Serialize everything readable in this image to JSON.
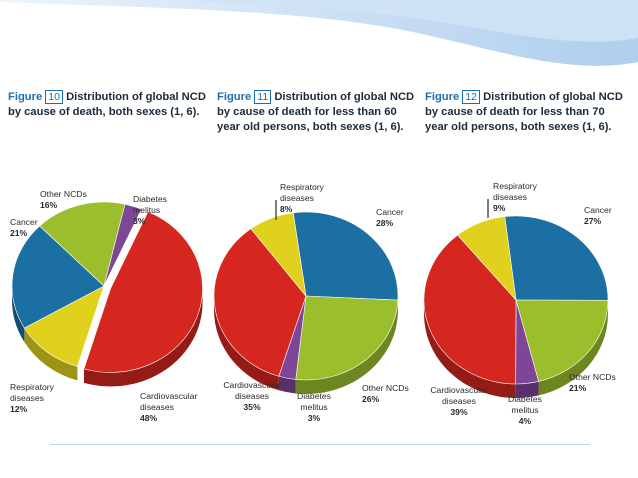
{
  "colors": {
    "cardiovascular": "#d5261f",
    "cancer": "#1b6fa3",
    "respiratory": "#e0d21c",
    "diabetes": "#7e4697",
    "other": "#9bbf2c",
    "figure_accent": "#1a6fb3"
  },
  "figures": [
    {
      "figure_word": "Figure",
      "number": "10",
      "caption": "Distribution of global NCD by cause of death, both sexes (1, 6).",
      "labels": [
        {
          "name": "Other NCDs",
          "pct": "16%"
        },
        {
          "name": "Diabetes melitus",
          "pct": "3%"
        },
        {
          "name": "Cancer",
          "pct": "21%"
        },
        {
          "name": "Respiratory diseases",
          "pct": "12%"
        },
        {
          "name": "Cardiovascular diseases",
          "pct": "48%"
        }
      ]
    },
    {
      "figure_word": "Figure",
      "number": "11",
      "caption": "Distribution of global NCD by cause of death for less than 60 year old persons, both sexes (1, 6).",
      "labels": [
        {
          "name": "Respiratory diseases",
          "pct": "8%"
        },
        {
          "name": "Cancer",
          "pct": "28%"
        },
        {
          "name": "Cardiovascular diseases",
          "pct": "35%"
        },
        {
          "name": "Diabetes melitus",
          "pct": "3%"
        },
        {
          "name": "Other NCDs",
          "pct": "26%"
        }
      ]
    },
    {
      "figure_word": "Figure",
      "number": "12",
      "caption": "Distribution of global NCD by cause of death for less than 70 year old persons, both sexes (1, 6).",
      "labels": [
        {
          "name": "Respiratory diseases",
          "pct": "9%"
        },
        {
          "name": "Cancer",
          "pct": "27%"
        },
        {
          "name": "Cardiovascular diseases",
          "pct": "39%"
        },
        {
          "name": "Diabetes melitus",
          "pct": "4%"
        },
        {
          "name": "Other NCDs",
          "pct": "21%"
        }
      ]
    }
  ],
  "chart_data": [
    {
      "type": "pie",
      "slices": [
        {
          "key": "cardiovascular",
          "value": 48
        },
        {
          "key": "respiratory",
          "value": 12
        },
        {
          "key": "cancer",
          "value": 21
        },
        {
          "key": "other",
          "value": 16
        },
        {
          "key": "diabetes",
          "value": 3
        }
      ]
    },
    {
      "type": "pie",
      "slices": [
        {
          "key": "cancer",
          "value": 28
        },
        {
          "key": "other",
          "value": 26
        },
        {
          "key": "diabetes",
          "value": 3
        },
        {
          "key": "cardiovascular",
          "value": 35
        },
        {
          "key": "respiratory",
          "value": 8
        }
      ]
    },
    {
      "type": "pie",
      "slices": [
        {
          "key": "cancer",
          "value": 27
        },
        {
          "key": "other",
          "value": 21
        },
        {
          "key": "diabetes",
          "value": 4
        },
        {
          "key": "cardiovascular",
          "value": 39
        },
        {
          "key": "respiratory",
          "value": 9
        }
      ]
    }
  ]
}
